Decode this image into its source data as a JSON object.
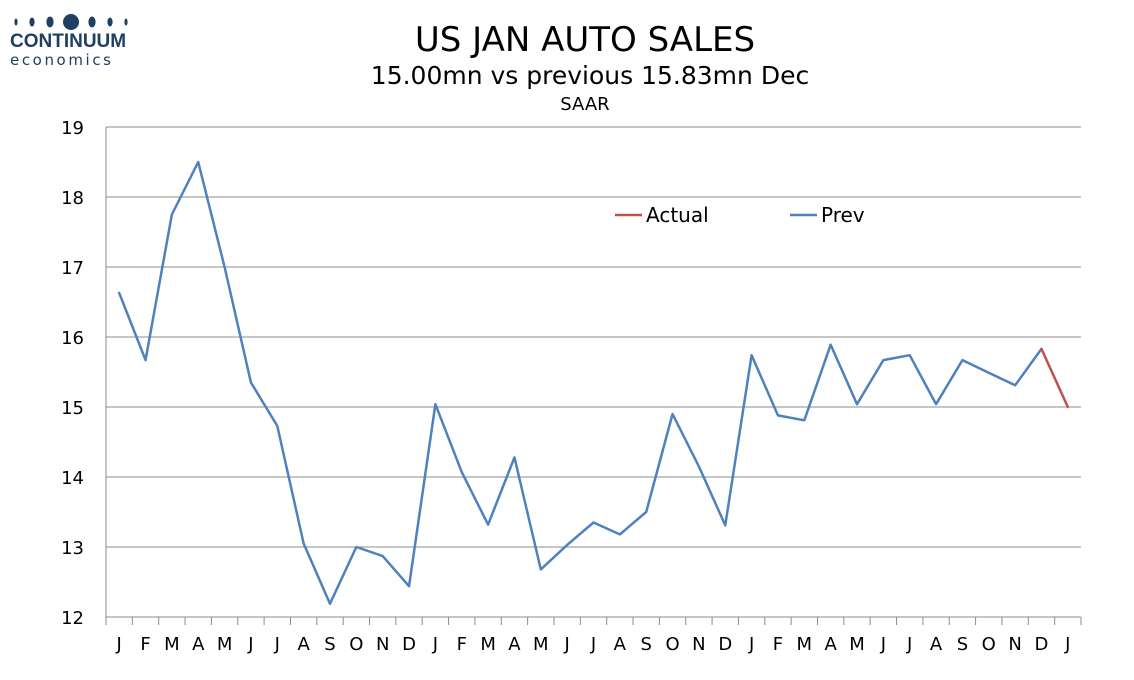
{
  "logo": {
    "name": "CONTINUUM",
    "sub": "economics"
  },
  "chart_data": {
    "type": "line",
    "title": "US JAN AUTO SALES",
    "subtitle": "15.00mn vs previous 15.83mn Dec",
    "ylabel": "SAAR",
    "ylim": [
      12,
      19
    ],
    "yticks": [
      12,
      13,
      14,
      15,
      16,
      17,
      18,
      19
    ],
    "grid": true,
    "legend": {
      "placement": "top-right",
      "entries": [
        "Actual",
        "Prev"
      ]
    },
    "categories": [
      "J",
      "F",
      "M",
      "A",
      "M",
      "J",
      "J",
      "A",
      "S",
      "O",
      "N",
      "D",
      "J",
      "F",
      "M",
      "A",
      "M",
      "J",
      "J",
      "A",
      "S",
      "O",
      "N",
      "D",
      "J",
      "F",
      "M",
      "A",
      "M",
      "J",
      "J",
      "A",
      "S",
      "O",
      "N",
      "D",
      "J"
    ],
    "series": [
      {
        "name": "Actual",
        "color": "#c0504d",
        "values": [
          null,
          null,
          null,
          null,
          null,
          null,
          null,
          null,
          null,
          null,
          null,
          null,
          null,
          null,
          null,
          null,
          null,
          null,
          null,
          null,
          null,
          null,
          null,
          null,
          null,
          null,
          null,
          null,
          null,
          null,
          null,
          null,
          null,
          null,
          null,
          15.83,
          15.0
        ]
      },
      {
        "name": "Prev",
        "color": "#4f81bd",
        "values": [
          16.63,
          15.67,
          17.75,
          18.5,
          17.0,
          15.35,
          14.73,
          13.05,
          12.19,
          13.0,
          12.87,
          12.44,
          15.04,
          14.07,
          13.32,
          14.28,
          12.68,
          13.03,
          13.35,
          13.18,
          13.5,
          14.9,
          14.15,
          13.31,
          15.74,
          14.88,
          14.81,
          15.89,
          15.04,
          15.67,
          15.74,
          15.04,
          15.67,
          15.49,
          15.31,
          15.83,
          null
        ]
      }
    ]
  }
}
